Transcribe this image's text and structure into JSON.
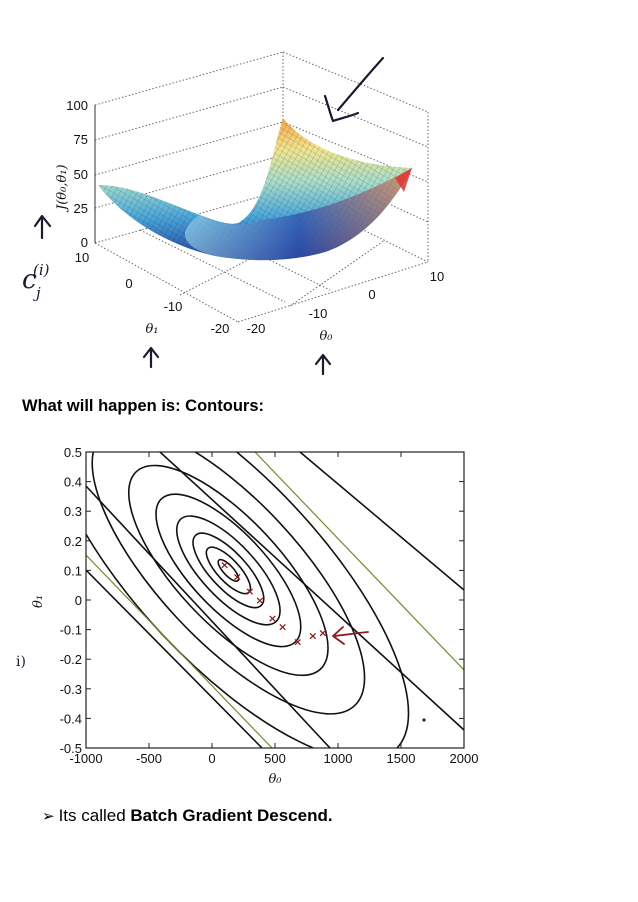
{
  "surface_plot": {
    "z_label": "J(θ₀,θ₁)",
    "z_ticks": [
      "0",
      "25",
      "50",
      "75",
      "100"
    ],
    "theta1_label": "θ₁",
    "theta1_ticks": [
      "10",
      "0",
      "-10",
      "-20"
    ],
    "theta0_label": "θ₀",
    "theta0_ticks": [
      "-20",
      "-10",
      "0",
      "10"
    ],
    "handwritten_note": "c(i) j"
  },
  "caption": "What will happen is: Contours:",
  "chart_data": {
    "type": "contour",
    "xlabel": "θ₀",
    "ylabel": "θ₁",
    "xlim": [
      -1000,
      2000
    ],
    "ylim": [
      -0.5,
      0.5
    ],
    "x_ticks": [
      "-1000",
      "-500",
      "0",
      "500",
      "1000",
      "1500",
      "2000"
    ],
    "y_ticks": [
      "0.5",
      "0.4",
      "0.3",
      "0.2",
      "0.1",
      "0",
      "-0.1",
      "-0.2",
      "-0.3",
      "-0.4",
      "-0.5"
    ],
    "gradient_steps": [
      {
        "x": 100,
        "y": 0.12
      },
      {
        "x": 200,
        "y": 0.08
      },
      {
        "x": 300,
        "y": 0.03
      },
      {
        "x": 380,
        "y": 0.0
      },
      {
        "x": 480,
        "y": -0.06
      },
      {
        "x": 560,
        "y": -0.09
      },
      {
        "x": 680,
        "y": -0.14
      },
      {
        "x": 800,
        "y": -0.12
      },
      {
        "x": 880,
        "y": -0.11
      }
    ],
    "annotation_left": "i)"
  },
  "bullet": {
    "prefix": "Its called ",
    "bold": "Batch Gradient Descend."
  }
}
